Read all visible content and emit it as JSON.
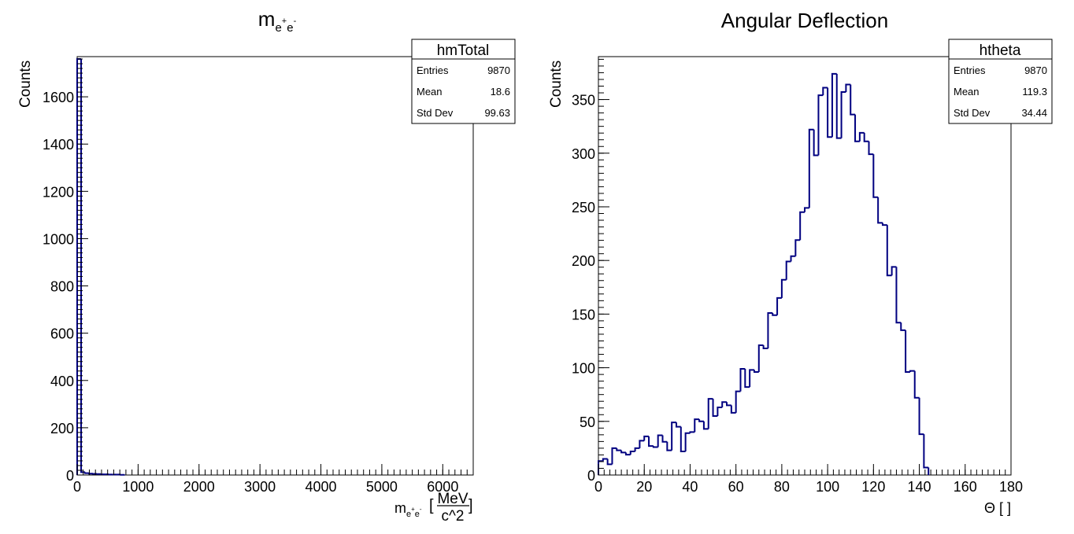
{
  "colors": {
    "histogram_line": "#000080",
    "axis": "#000000",
    "background": "#ffffff"
  },
  "chart_data": [
    {
      "type": "histogram",
      "title": {
        "main": "m",
        "sub": "e",
        "sup1": "+",
        "sub2": "e",
        "sup2": "-"
      },
      "ylabel": "Counts",
      "xlabel": {
        "main": "m",
        "sub": "e",
        "sup1": "+",
        "sub2": "e",
        "sup2": "-",
        "bracket_open": "[",
        "num": "MeV",
        "den": "c^2",
        "bracket_close": "]"
      },
      "xlim": [
        0,
        6500
      ],
      "ylim": [
        0,
        1770
      ],
      "x_ticks": [
        {
          "value": 0,
          "label": "0"
        },
        {
          "value": 1000,
          "label": "1000"
        },
        {
          "value": 2000,
          "label": "2000"
        },
        {
          "value": 3000,
          "label": "3000"
        },
        {
          "value": 4000,
          "label": "4000"
        },
        {
          "value": 5000,
          "label": "5000"
        },
        {
          "value": 6000,
          "label": "6000"
        }
      ],
      "y_ticks": [
        {
          "value": 0,
          "label": "0"
        },
        {
          "value": 200,
          "label": "200"
        },
        {
          "value": 400,
          "label": "400"
        },
        {
          "value": 600,
          "label": "600"
        },
        {
          "value": 800,
          "label": "800"
        },
        {
          "value": 1000,
          "label": "1000"
        },
        {
          "value": 1200,
          "label": "1200"
        },
        {
          "value": 1400,
          "label": "1400"
        },
        {
          "value": 1600,
          "label": "1600"
        }
      ],
      "bin_edges_start": 0,
      "bin_width": 65,
      "values": [
        1760,
        12,
        8,
        6,
        5,
        4,
        3,
        3,
        2,
        2,
        2,
        1
      ],
      "stats": {
        "name": "hmTotal",
        "rows": [
          {
            "label": "Entries",
            "value": "9870"
          },
          {
            "label": "Mean",
            "value": "18.6"
          },
          {
            "label": "Std Dev",
            "value": "99.63"
          }
        ]
      },
      "grid": false
    },
    {
      "type": "histogram",
      "title": "Angular Deflection",
      "ylabel": "Counts",
      "xlabel": "Θ [ ]",
      "xlim": [
        0,
        180
      ],
      "ylim": [
        0,
        390
      ],
      "x_ticks": [
        {
          "value": 0,
          "label": "0"
        },
        {
          "value": 20,
          "label": "20"
        },
        {
          "value": 40,
          "label": "40"
        },
        {
          "value": 60,
          "label": "60"
        },
        {
          "value": 80,
          "label": "80"
        },
        {
          "value": 100,
          "label": "100"
        },
        {
          "value": 120,
          "label": "120"
        },
        {
          "value": 140,
          "label": "140"
        },
        {
          "value": 160,
          "label": "160"
        },
        {
          "value": 180,
          "label": "180"
        }
      ],
      "y_ticks": [
        {
          "value": 0,
          "label": "0"
        },
        {
          "value": 50,
          "label": "50"
        },
        {
          "value": 100,
          "label": "100"
        },
        {
          "value": 150,
          "label": "150"
        },
        {
          "value": 200,
          "label": "200"
        },
        {
          "value": 250,
          "label": "250"
        },
        {
          "value": 300,
          "label": "300"
        },
        {
          "value": 350,
          "label": "350"
        }
      ],
      "bin_edges_start": 0,
      "bin_width": 2,
      "values": [
        13,
        15,
        10,
        25,
        23,
        21,
        19,
        22,
        25,
        32,
        36,
        27,
        26,
        37,
        31,
        23,
        49,
        45,
        22,
        39,
        40,
        52,
        50,
        43,
        71,
        55,
        63,
        68,
        65,
        58,
        78,
        99,
        82,
        98,
        96,
        121,
        118,
        151,
        149,
        165,
        182,
        199,
        204,
        219,
        245,
        249,
        322,
        298,
        354,
        361,
        315,
        374,
        314,
        357,
        364,
        336,
        311,
        319,
        311,
        299,
        259,
        235,
        233,
        186,
        194,
        142,
        135,
        96,
        97,
        72,
        38,
        7
      ],
      "stats": {
        "name": "htheta",
        "rows": [
          {
            "label": "Entries",
            "value": "9870"
          },
          {
            "label": "Mean",
            "value": "119.3"
          },
          {
            "label": "Std Dev",
            "value": "34.44"
          }
        ]
      },
      "grid": false
    }
  ]
}
